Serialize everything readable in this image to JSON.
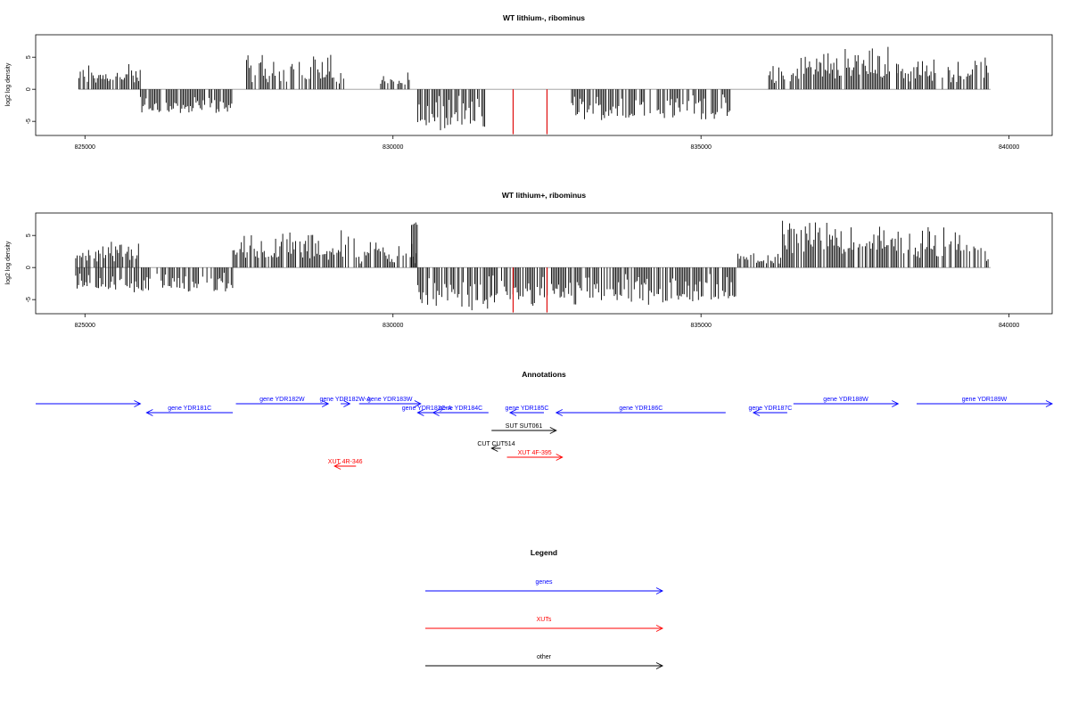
{
  "chart_data": [
    {
      "type": "bar",
      "title": "WT lithium-, ribominus",
      "ylabel": "log2 log density",
      "xlim": [
        824200,
        840700
      ],
      "ylim": [
        -7.2,
        8.5
      ],
      "xticks": [
        825000,
        830000,
        835000,
        840000
      ],
      "xtick_labels": [
        "825000",
        "830000",
        "835000",
        "840000"
      ],
      "yticks": [
        -5,
        0,
        5
      ],
      "ytick_labels": [
        "-5",
        "0",
        "5"
      ],
      "grid": false,
      "baseline": 0,
      "bar_color": "#000000",
      "highlight_color": "#dd0000",
      "segments": [
        {
          "start": 824900,
          "end": 825900,
          "min": 0.8,
          "max": 4.5
        },
        {
          "start": 825900,
          "end": 827400,
          "min": -3.8,
          "max": -0.8
        },
        {
          "start": 827600,
          "end": 829200,
          "min": 0.8,
          "max": 6.0
        },
        {
          "start": 829800,
          "end": 830300,
          "min": 0.5,
          "max": 3.0
        },
        {
          "start": 830400,
          "end": 831500,
          "min": -6.8,
          "max": -0.6
        },
        {
          "start": 832900,
          "end": 835500,
          "min": -4.8,
          "max": -0.5
        },
        {
          "start": 836100,
          "end": 836600,
          "min": 0.5,
          "max": 4.0
        },
        {
          "start": 836600,
          "end": 838200,
          "min": 1.5,
          "max": 7.0
        },
        {
          "start": 838200,
          "end": 839700,
          "min": 1.0,
          "max": 5.5
        }
      ],
      "highlights": [
        {
          "x": 831950,
          "value": -7.0
        },
        {
          "x": 832500,
          "value": -7.0
        }
      ]
    },
    {
      "type": "bar",
      "title": "WT lithium+, ribominus",
      "ylabel": "log2 log density",
      "xlim": [
        824200,
        840700
      ],
      "ylim": [
        -7.2,
        8.5
      ],
      "xticks": [
        825000,
        830000,
        835000,
        840000
      ],
      "xtick_labels": [
        "825000",
        "830000",
        "835000",
        "840000"
      ],
      "yticks": [
        -5,
        0,
        5
      ],
      "ytick_labels": [
        "-5",
        "0",
        "5"
      ],
      "grid": false,
      "baseline": 0,
      "bar_color": "#000000",
      "highlight_color": "#dd0000",
      "segments": [
        {
          "start": 824850,
          "end": 825900,
          "min": 0.8,
          "max": 5.0
        },
        {
          "start": 824850,
          "end": 827400,
          "min": -4.0,
          "max": -0.5
        },
        {
          "start": 827400,
          "end": 829400,
          "min": 1.0,
          "max": 6.0
        },
        {
          "start": 829400,
          "end": 830400,
          "min": 0.5,
          "max": 5.0
        },
        {
          "start": 830300,
          "end": 830400,
          "min": 6.5,
          "max": 7.3
        },
        {
          "start": 830400,
          "end": 831600,
          "min": -6.8,
          "max": -0.8
        },
        {
          "start": 831600,
          "end": 835600,
          "min": -6.0,
          "max": -0.6
        },
        {
          "start": 835600,
          "end": 836300,
          "min": 0.5,
          "max": 2.5
        },
        {
          "start": 836300,
          "end": 838200,
          "min": 2.0,
          "max": 8.0
        },
        {
          "start": 838200,
          "end": 839700,
          "min": 1.0,
          "max": 7.0
        }
      ],
      "highlights": [
        {
          "x": 831950,
          "value": -7.0
        },
        {
          "x": 832500,
          "value": -7.0
        }
      ]
    }
  ],
  "annotations": {
    "title": "Annotations",
    "xlim": [
      824200,
      840700
    ],
    "features": [
      {
        "label": "",
        "start": 824200,
        "end": 825900,
        "strand": "+",
        "type": "gene",
        "row": 0
      },
      {
        "label": "gene YDR181C",
        "start": 826000,
        "end": 827400,
        "strand": "-",
        "type": "gene",
        "row": 1
      },
      {
        "label": "gene YDR182W",
        "start": 827450,
        "end": 828950,
        "strand": "+",
        "type": "gene",
        "row": 0
      },
      {
        "label": "gene YDR182W-A",
        "start": 829150,
        "end": 829300,
        "strand": "+",
        "type": "gene",
        "row": 0
      },
      {
        "label": "gene YDR183W",
        "start": 829450,
        "end": 830450,
        "strand": "+",
        "type": "gene",
        "row": 0
      },
      {
        "label": "gene YDR183C-A",
        "start": 830400,
        "end": 830700,
        "strand": "-",
        "type": "gene",
        "row": 1
      },
      {
        "label": "gene YDR184C",
        "start": 830650,
        "end": 831550,
        "strand": "-",
        "type": "gene",
        "row": 1
      },
      {
        "label": "gene YDR185C",
        "start": 831900,
        "end": 832450,
        "strand": "-",
        "type": "gene",
        "row": 1
      },
      {
        "label": "gene YDR186C",
        "start": 832650,
        "end": 835400,
        "strand": "-",
        "type": "gene",
        "row": 1
      },
      {
        "label": "gene YDR187C",
        "start": 835850,
        "end": 836400,
        "strand": "-",
        "type": "gene",
        "row": 1
      },
      {
        "label": "gene YDR188W",
        "start": 836500,
        "end": 838200,
        "strand": "+",
        "type": "gene",
        "row": 0
      },
      {
        "label": "gene YDR189W",
        "start": 838500,
        "end": 840700,
        "strand": "+",
        "type": "gene",
        "row": 0
      },
      {
        "label": "SUT SUT061",
        "start": 831600,
        "end": 832650,
        "strand": "+",
        "type": "other",
        "row": 3
      },
      {
        "label": "CUT CUT514",
        "start": 831600,
        "end": 831750,
        "strand": "-",
        "type": "other",
        "row": 5
      },
      {
        "label": "XUT 4F-395",
        "start": 831850,
        "end": 832750,
        "strand": "+",
        "type": "XUT",
        "row": 6
      },
      {
        "label": "XUT 4R-346",
        "start": 829050,
        "end": 829400,
        "strand": "-",
        "type": "XUT",
        "row": 7
      }
    ]
  },
  "legend": {
    "title": "Legend",
    "items": [
      {
        "label": "genes",
        "color": "#0000ff"
      },
      {
        "label": "XUTs",
        "color": "#ff0000"
      },
      {
        "label": "other",
        "color": "#000000"
      }
    ]
  },
  "colors": {
    "gene": "#0000ff",
    "XUT": "#ff0000",
    "other": "#000000",
    "axis": "#000000"
  }
}
